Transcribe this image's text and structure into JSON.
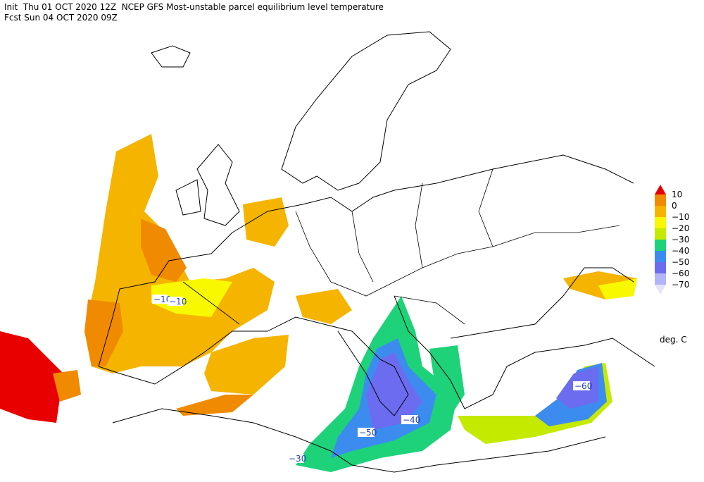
{
  "header": {
    "line1": "Init  Thu 01 OCT 2020 12Z  NCEP GFS Most-unstable parcel equilibrium level temperature",
    "line2": "Fcst Sun 04 OCT 2020 09Z"
  },
  "legend": {
    "labels": [
      "10",
      "0",
      "−10",
      "−20",
      "−30",
      "−40",
      "−50",
      "−60",
      "−70"
    ],
    "colors": [
      "#e80000",
      "#f08a00",
      "#f5b400",
      "#f8f800",
      "#c4ea00",
      "#1ed27a",
      "#3c8cf0",
      "#6c6cf0",
      "#b4b4f8",
      "#e4e4fc"
    ],
    "unit": "deg. C"
  },
  "contour_labels": [
    "−10",
    "−10",
    "−40",
    "−50",
    "−60",
    "−30"
  ]
}
